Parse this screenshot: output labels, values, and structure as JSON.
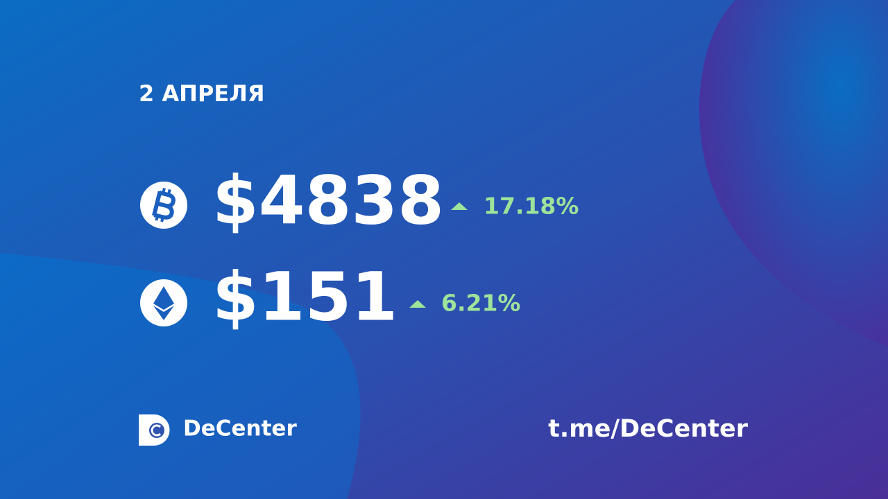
{
  "date": "2 АПРЕЛЯ",
  "rates": [
    {
      "price": "$4838",
      "change": "17.18%"
    },
    {
      "price": "$151",
      "change": "6.21%"
    }
  ],
  "brand": "DeCenter",
  "link": "t.me/DeCenter"
}
